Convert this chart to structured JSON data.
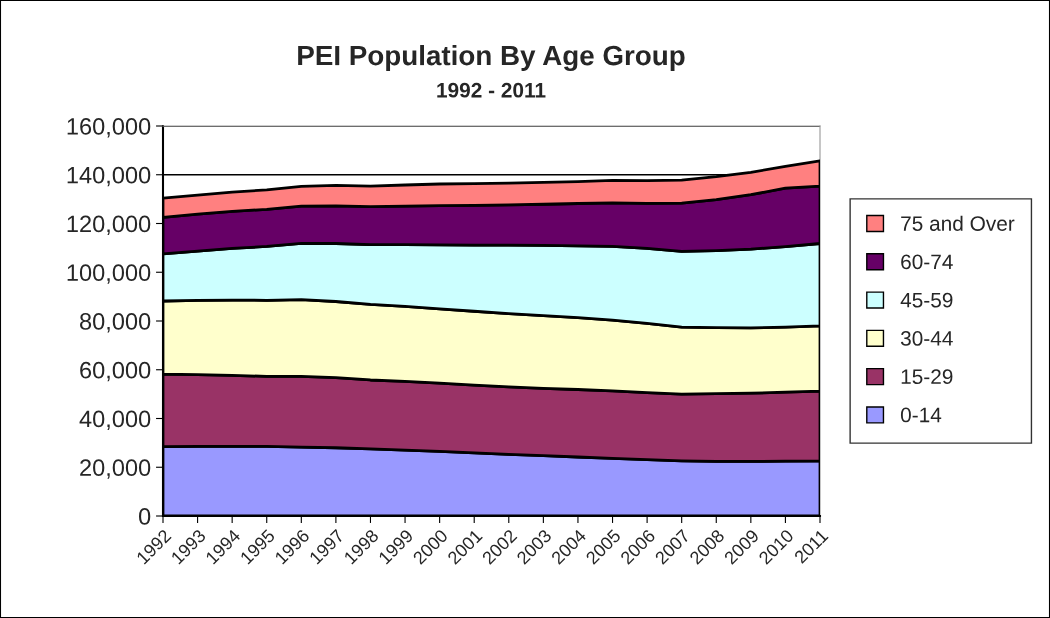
{
  "chart_data": {
    "type": "area",
    "stacked": true,
    "title": "PEI Population By Age Group",
    "subtitle": "1992 - 2011",
    "categories": [
      "1992",
      "1993",
      "1994",
      "1995",
      "1996",
      "1997",
      "1998",
      "1999",
      "2000",
      "2001",
      "2002",
      "2003",
      "2004",
      "2005",
      "2006",
      "2007",
      "2008",
      "2009",
      "2010",
      "2011"
    ],
    "series": [
      {
        "name": "0-14",
        "color": "#9999ff",
        "values": [
          28500,
          28600,
          28600,
          28600,
          28300,
          28000,
          27500,
          27000,
          26500,
          25900,
          25300,
          24800,
          24200,
          23600,
          23100,
          22600,
          22400,
          22400,
          22500,
          22600
        ]
      },
      {
        "name": "15-29",
        "color": "#993366",
        "values": [
          29700,
          29400,
          29100,
          28700,
          29000,
          28800,
          28300,
          28200,
          28000,
          27800,
          27700,
          27600,
          27700,
          27700,
          27500,
          27400,
          27800,
          28000,
          28300,
          28600
        ]
      },
      {
        "name": "30-44",
        "color": "#ffffcc",
        "values": [
          30000,
          30500,
          30900,
          31200,
          31500,
          31200,
          31000,
          30800,
          30500,
          30300,
          30000,
          29800,
          29500,
          29100,
          28400,
          27500,
          27100,
          26800,
          26700,
          26800
        ]
      },
      {
        "name": "45-59",
        "color": "#ccffff",
        "values": [
          19300,
          20200,
          21200,
          22100,
          23000,
          23800,
          24500,
          25300,
          26200,
          27100,
          28100,
          28800,
          29400,
          30200,
          30800,
          31100,
          31600,
          32300,
          33000,
          33800
        ]
      },
      {
        "name": "60-74",
        "color": "#660066",
        "values": [
          15000,
          15100,
          15200,
          15200,
          15300,
          15400,
          15600,
          15800,
          16100,
          16300,
          16500,
          16900,
          17400,
          17900,
          18500,
          19800,
          20900,
          22300,
          24000,
          23500
        ]
      },
      {
        "name": "75 and Over",
        "color": "#ff8080",
        "values": [
          7900,
          7800,
          7900,
          8000,
          8100,
          8400,
          8400,
          8700,
          8900,
          9000,
          9000,
          9000,
          9000,
          9200,
          9300,
          9400,
          9400,
          9200,
          8900,
          10400
        ]
      }
    ],
    "ylim": [
      0,
      160000
    ],
    "yticks": [
      {
        "value": 0,
        "label": "0"
      },
      {
        "value": 20000,
        "label": "20,000"
      },
      {
        "value": 40000,
        "label": "40,000"
      },
      {
        "value": 60000,
        "label": "60,000"
      },
      {
        "value": 80000,
        "label": "80,000"
      },
      {
        "value": 100000,
        "label": "100,000"
      },
      {
        "value": 120000,
        "label": "120,000"
      },
      {
        "value": 140000,
        "label": "140,000"
      },
      {
        "value": 160000,
        "label": "160,000"
      }
    ],
    "grid": "y",
    "legend": "right"
  }
}
